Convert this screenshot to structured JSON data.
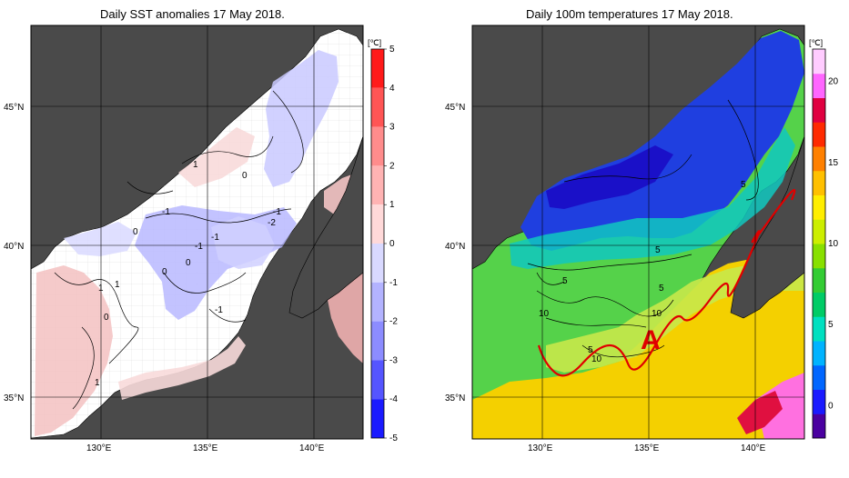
{
  "left_panel": {
    "title": "Daily SST anomalies 17 May 2018.",
    "unit": "[℃]",
    "colorbar_ticks": [
      "5",
      "4",
      "3",
      "2",
      "1",
      "0",
      "-1",
      "-2",
      "-3",
      "-4",
      "-5"
    ],
    "colorbar_colors": [
      "#1a1aff",
      "#5555ff",
      "#8c8cff",
      "#b3b3ff",
      "#d9d9ff",
      "#ffffff",
      "#ffd9d9",
      "#ffb3b3",
      "#ff8c8c",
      "#ff5555",
      "#ff1a1a"
    ],
    "lat_labels": [
      "45°N",
      "40°N",
      "35°N"
    ],
    "lon_labels": [
      "130°E",
      "135°E",
      "140°E"
    ],
    "contour_labels": [
      "1",
      "0",
      "-1",
      "0",
      "-1",
      "-2",
      "-1",
      "0",
      "-1",
      "1",
      "1",
      "0",
      "-1",
      "0",
      "1"
    ]
  },
  "right_panel": {
    "title": "Daily 100m temperatures 17 May 2018.",
    "unit": "[℃]",
    "colorbar_ticks": [
      "20",
      "15",
      "10",
      "5",
      "0"
    ],
    "colorbar_colors": [
      "#4a00a0",
      "#1a1aff",
      "#0066ff",
      "#00b3ff",
      "#00e0c0",
      "#00cc66",
      "#33cc33",
      "#88e000",
      "#ccee00",
      "#ffee00",
      "#ffc000",
      "#ff8000",
      "#ff2a00",
      "#e00040",
      "#ff66ff",
      "#ffccff"
    ],
    "lat_labels": [
      "45°N",
      "40°N",
      "35°N"
    ],
    "lon_labels": [
      "130°E",
      "135°E",
      "140°E"
    ],
    "contour_labels": [
      "5",
      "5",
      "5",
      "5",
      "10",
      "10",
      "10",
      "5"
    ],
    "marker_label": "A"
  },
  "colors": {
    "land": "#4a4a4a",
    "frame": "#000000",
    "red_line": "#e00000"
  }
}
